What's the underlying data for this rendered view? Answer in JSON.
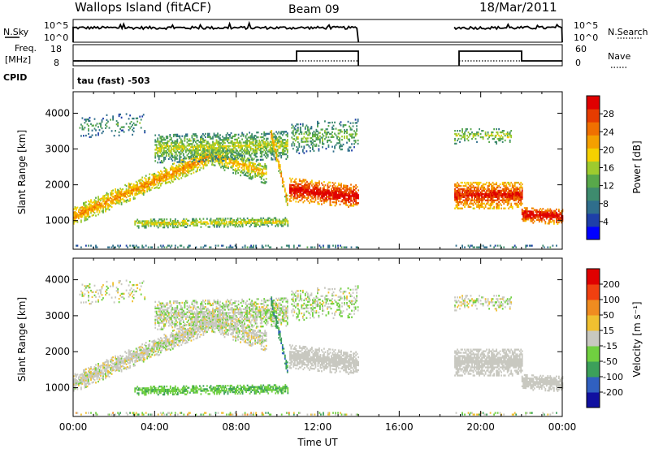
{
  "header": {
    "station": "Wallops Island (fitACF)",
    "beam": "Beam 09",
    "date": "18/Mar/2011"
  },
  "status_panel": {
    "nsky_label": "N.Sky",
    "nsky_ticks": [
      "10^5",
      "10^0"
    ],
    "nsearch_label": "N.Search",
    "nsearch_ticks": [
      "10^5",
      "10^0"
    ],
    "freq_label_line1": "Freq.",
    "freq_label_line2": "[MHz]",
    "freq_ticks": [
      "18",
      "8"
    ],
    "nave_label": "Nave",
    "nave_ticks": [
      "60",
      "0"
    ],
    "cpid_label": "CPID",
    "cpid_value": "tau (fast) -503"
  },
  "chart_data": [
    {
      "type": "heatmap",
      "quantity": "power",
      "ylabel": "Slant Range [km]",
      "ylim": [
        200,
        4600
      ],
      "yticks": [
        "1000",
        "2000",
        "3000",
        "4000"
      ],
      "xlim_hours": [
        0,
        24
      ],
      "colorbar_label": "Power [dB]",
      "colorbar_ticks": [
        "28",
        "24",
        "20",
        "16",
        "12",
        "8",
        "4"
      ],
      "colorbar_colors": [
        "#0000ff",
        "#1e3fa8",
        "#2f6e8c",
        "#3e8b6e",
        "#58a84a",
        "#9ecb2e",
        "#f5d000",
        "#f5a000",
        "#f07000",
        "#e63c00",
        "#e00000"
      ]
    },
    {
      "type": "heatmap",
      "quantity": "velocity",
      "ylabel": "Slant Range [km]",
      "ylim": [
        200,
        4600
      ],
      "yticks": [
        "1000",
        "2000",
        "3000",
        "4000"
      ],
      "xlim_hours": [
        0,
        24
      ],
      "xticks": [
        "00:00",
        "04:00",
        "08:00",
        "12:00",
        "16:00",
        "20:00",
        "00:00"
      ],
      "xlabel": "Time UT",
      "colorbar_label": "Velocity [m s⁻¹]",
      "colorbar_ticks": [
        "200",
        "100",
        "50",
        "15",
        "-15",
        "-50",
        "-100",
        "-200"
      ],
      "colorbar_colors": [
        "#1010a0",
        "#3060c0",
        "#3ca05a",
        "#70d040",
        "#c8c8c0",
        "#f0c030",
        "#f08c20",
        "#f04010",
        "#e00000"
      ]
    }
  ]
}
